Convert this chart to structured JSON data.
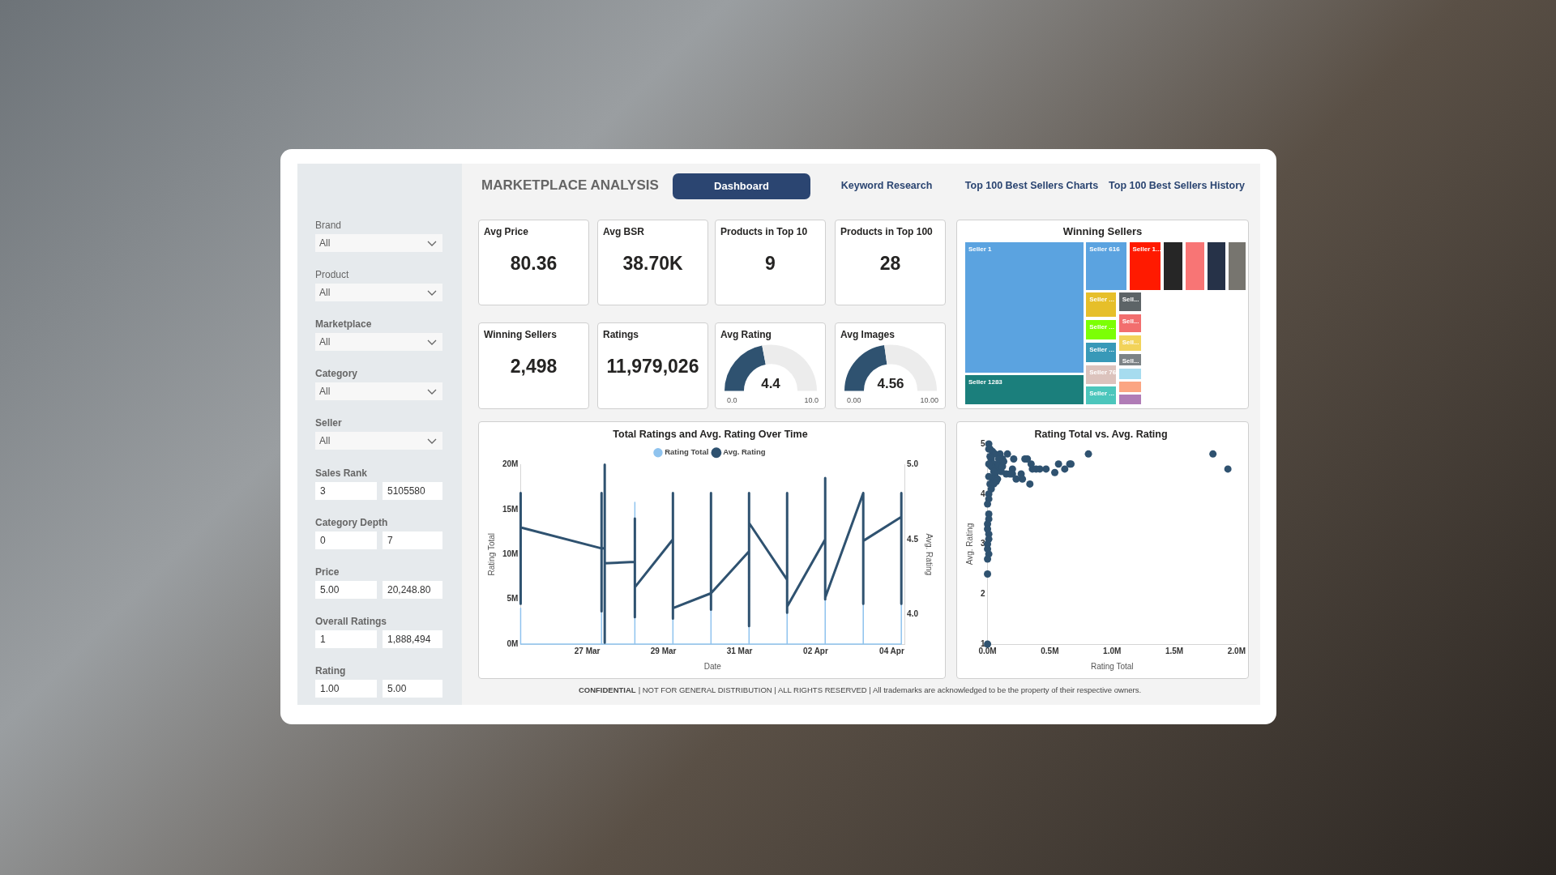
{
  "chart_data": [
    {
      "type": "other",
      "title": "MARKETPLACE ANALYSIS",
      "annotations": [
        "Dashboard",
        "Keyword Research",
        "Top 100 Best Sellers Charts",
        "Top 100 Best Sellers History"
      ]
    },
    {
      "type": "other",
      "categories": [
        "Brand",
        "Product",
        "Marketplace",
        "Category",
        "Seller"
      ],
      "annotations": [
        "All",
        "All",
        "All",
        "All",
        "All"
      ]
    },
    {
      "type": "other",
      "categories": [
        "Sales Rank",
        "Category Depth",
        "Price",
        "Overall Ratings",
        "Rating"
      ],
      "annotations": [
        "3",
        "5105580",
        "0",
        "7",
        "5.00",
        "20,248.80",
        "1",
        "1,888,494",
        "1.00",
        "5.00"
      ]
    },
    {
      "type": "other",
      "title": "Avg Price",
      "annotations": [
        "80.36"
      ]
    },
    {
      "type": "other",
      "title": "Avg BSR",
      "annotations": [
        "38.70K"
      ]
    },
    {
      "type": "other",
      "title": "Products in Top 10",
      "annotations": [
        "9"
      ]
    },
    {
      "type": "other",
      "title": "Products in Top 100",
      "annotations": [
        "28"
      ]
    },
    {
      "type": "other",
      "title": "Winning Sellers",
      "annotations": [
        "2,498"
      ]
    },
    {
      "type": "other",
      "title": "Ratings",
      "annotations": [
        "11,979,026"
      ]
    },
    {
      "type": "donut",
      "title": "Avg Rating",
      "categories": [
        null,
        null
      ],
      "values": [
        4.4,
        5.6
      ],
      "colors": [
        "#2f5270",
        "#ececec"
      ],
      "value_labels": [
        "4.4",
        null
      ],
      "annotations": [
        "0.0",
        "10.0"
      ]
    },
    {
      "type": "donut",
      "title": "Avg Images",
      "categories": [
        null,
        null
      ],
      "values": [
        4.56,
        5.44
      ],
      "colors": [
        "#2f5270",
        "#ececec"
      ],
      "value_labels": [
        "4.56",
        null
      ],
      "annotations": [
        "0.00",
        "10.00"
      ]
    },
    {
      "type": "other",
      "title": "Winning Sellers",
      "categories": [
        "Seller 1",
        "Seller 1283",
        "Seller 616",
        "Seller 1...",
        null,
        null,
        null,
        null,
        "Seller ...",
        "Seller ...",
        "Seller ...",
        "Seller 76",
        "Seller ...",
        "Sell...",
        "Sell...",
        "Sell...",
        "Sell...",
        null,
        null,
        null
      ],
      "colors": [
        "#5ba3e0",
        "#1b7f7c",
        "#5ba3e0",
        "#ff1a00",
        "#262626",
        "#f87575",
        "#263248",
        "#77756f",
        "#e6bf2a",
        "#7cff05",
        "#3899b8",
        "#dcc3bd",
        "#4cc6bc",
        "#5d6467",
        "#f26e6e",
        "#f2d35a",
        "#7c8386",
        "#a6dcef",
        "#fba582",
        "#b07cb6"
      ]
    },
    {
      "type": "line",
      "title": "Total Ratings and Avg. Rating Over Time",
      "xlabel": "Date",
      "ylabel": "Rating Total",
      "y2label": "Avg. Rating",
      "legend": "top",
      "xlim": [
        "--03-25T06:00",
        "--04-04T08:00"
      ],
      "xticks": [
        {
          "value": "--03-27",
          "label": "27 Mar"
        },
        {
          "value": "--03-29",
          "label": "29 Mar"
        },
        {
          "value": "--03-31",
          "label": "31 Mar"
        },
        {
          "value": "--04-02",
          "label": "02 Apr"
        },
        {
          "value": "--04-04",
          "label": "04 Apr"
        }
      ],
      "ylim": [
        0,
        20000000
      ],
      "yticks": [
        {
          "value": 0,
          "label": "0M"
        },
        {
          "value": 5000000,
          "label": "5M"
        },
        {
          "value": 10000000,
          "label": "10M"
        },
        {
          "value": 15000000,
          "label": "15M"
        },
        {
          "value": 20000000,
          "label": "20M"
        }
      ],
      "y2lim": [
        3.8,
        5.0
      ],
      "y2ticks": [
        {
          "value": 4,
          "label": "4.0"
        },
        4.5,
        {
          "value": 5,
          "label": "5.0"
        }
      ],
      "series": [
        {
          "name": "Rating Total",
          "color": "#8fc3ee",
          "x": [
            "--03-25T06:00",
            "--03-25T06:00",
            "--03-25T06:00",
            "--03-27T09:00",
            "--03-27T09:00",
            "--03-27T09:00",
            "--03-28T06:00",
            "--03-28T06:00",
            "--03-28T06:00",
            "--03-29T06:00",
            "--03-29T06:00",
            "--03-29T06:00",
            "--03-30T06:00",
            "--03-30T06:00",
            "--03-30T06:00",
            "--03-31T06:00",
            "--03-31T06:00",
            "--03-31T06:00",
            "--04-01T06:00",
            "--04-01T06:00",
            "--04-01T06:00",
            "--04-02T06:00",
            "--04-02T06:00",
            "--04-02T06:00",
            "--04-03T06:00",
            "--04-03T06:00",
            "--04-03T06:00",
            "--04-04T06:00",
            "--04-04T06:00",
            "--04-04T06:00"
          ],
          "values": [
            0,
            4000000,
            0,
            0,
            3700000,
            0,
            0,
            15800000,
            0,
            0,
            2800000,
            0,
            0,
            3800000,
            0,
            0,
            2000000,
            0,
            0,
            3500000,
            0,
            0,
            5000000,
            0,
            0,
            4500000,
            0,
            0,
            4500000,
            0
          ]
        },
        {
          "name": "Avg. Rating",
          "color": "#2f5270",
          "axis": "y2",
          "x": [
            "--03-25T06:00",
            "--03-25T06:00",
            "--03-25T06:00",
            "--03-27T09:00",
            "--03-27T09:00",
            "--03-27T09:00",
            "--03-27T09:00",
            "--03-27T11:00",
            "--03-27T11:00",
            "--03-27T11:00",
            "--03-27T11:00",
            "--03-28T06:00",
            "--03-28T06:00",
            "--03-28T06:00",
            "--03-28T06:00",
            "--03-29T06:00",
            "--03-29T06:00",
            "--03-29T06:00",
            "--03-29T06:00",
            "--03-30T06:00",
            "--03-30T06:00",
            "--03-30T06:00",
            "--03-30T06:00",
            "--03-31T06:00",
            "--03-31T06:00",
            "--03-31T06:00",
            "--03-31T06:00",
            "--04-01T06:00",
            "--04-01T06:00",
            "--04-01T06:00",
            "--04-01T06:00",
            "--04-02T06:00",
            "--04-02T06:00",
            "--04-02T06:00",
            "--04-02T06:00",
            "--04-03T06:00",
            "--04-03T06:00",
            "--04-03T06:00",
            "--04-03T06:00",
            "--04-04T06:00",
            "--04-04T06:00",
            "--04-04T06:00"
          ],
          "values": [
            4.81,
            4.07,
            4.58,
            4.44,
            4.81,
            4.02,
            4.44,
            4.44,
            5.0,
            3.81,
            4.34,
            4.35,
            4.64,
            3.98,
            4.18,
            4.5,
            4.81,
            3.97,
            4.04,
            4.14,
            4.81,
            4.03,
            4.14,
            4.42,
            4.81,
            3.92,
            4.61,
            4.23,
            4.81,
            4.01,
            4.05,
            4.5,
            4.91,
            4.1,
            4.11,
            4.81,
            4.81,
            4.07,
            4.49,
            4.65,
            4.81,
            4.07
          ]
        }
      ]
    },
    {
      "type": "scatter",
      "title": "Rating Total vs. Avg. Rating",
      "xlabel": "Rating Total",
      "ylabel": "Avg. Rating",
      "marker": "circle",
      "xlim": [
        0,
        2000000
      ],
      "xticks": [
        {
          "value": 0,
          "label": "0.0M"
        },
        {
          "value": 500000,
          "label": "0.5M"
        },
        {
          "value": 1000000,
          "label": "1.0M"
        },
        {
          "value": 1500000,
          "label": "1.5M"
        },
        {
          "value": 2000000,
          "label": "2.0M"
        }
      ],
      "ylim": [
        1,
        5
      ],
      "yticks": [
        1,
        2,
        3,
        4,
        5
      ],
      "series": [
        {
          "color": "#2f5270",
          "x": [
            810000,
            1810000,
            1930000,
            660000,
            670000,
            620000,
            570000,
            540000,
            470000,
            420000,
            390000,
            360000,
            340000,
            350000,
            320000,
            300000,
            270000,
            280000,
            230000,
            200000,
            200000,
            210000,
            160000,
            100000,
            150000,
            120000,
            180000,
            10000,
            10000,
            20000,
            40000,
            60000,
            30000,
            50000,
            70000,
            90000,
            110000,
            60000,
            40000,
            80000,
            20000,
            50000,
            30000,
            10000,
            70000,
            120000,
            130000,
            30000,
            50000,
            10000,
            10000,
            20000,
            90000,
            10000,
            0,
            10000,
            0,
            10000,
            0,
            10000,
            0,
            10000,
            0,
            10000,
            0,
            0,
            0
          ],
          "values": [
            4.8,
            4.8,
            4.5,
            4.6,
            4.6,
            4.5,
            4.6,
            4.43,
            4.5,
            4.5,
            4.5,
            4.5,
            4.2,
            4.6,
            4.7,
            4.7,
            4.4,
            4.3,
            4.3,
            4.5,
            4.4,
            4.7,
            4.8,
            4.8,
            4.4,
            4.7,
            4.4,
            5.0,
            4.9,
            4.9,
            4.85,
            4.8,
            4.7,
            4.6,
            4.5,
            4.6,
            4.45,
            4.4,
            4.3,
            4.3,
            4.2,
            4.2,
            4.1,
            4.0,
            4.25,
            4.55,
            4.65,
            4.55,
            4.45,
            4.35,
            4.6,
            4.75,
            4.7,
            3.9,
            3.8,
            3.6,
            3.4,
            3.2,
            3.0,
            2.8,
            2.7,
            3.5,
            3.3,
            3.1,
            2.9,
            2.4,
            1.0
          ]
        }
      ]
    },
    {
      "type": "other",
      "annotations": [
        "CONFIDENTIAL",
        "| NOT FOR GENERAL DISTRIBUTION | ALL RIGHTS RESERVED | All trademarks are acknowledged to be the property of their respective owners."
      ]
    }
  ]
}
